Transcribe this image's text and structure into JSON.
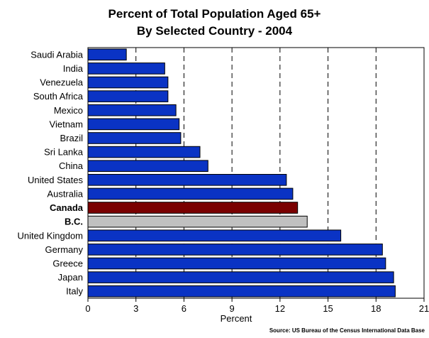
{
  "chart_data": {
    "type": "bar",
    "orientation": "horizontal",
    "title": "Percent of Total Population Aged 65+",
    "subtitle": "By Selected Country - 2004",
    "xlabel": "Percent",
    "ylabel": "",
    "xlim": [
      0,
      21
    ],
    "xticks": [
      "0",
      "3",
      "6",
      "9",
      "12",
      "15",
      "18",
      "21"
    ],
    "grid": "vertical dashed",
    "source": "Source:  US Bureau of the Census International Data Base",
    "categories": [
      "Saudi Arabia",
      "India",
      "Venezuela",
      "South Africa",
      "Mexico",
      "Vietnam",
      "Brazil",
      "Sri Lanka",
      "China",
      "United States",
      "Australia",
      "Canada",
      "B.C.",
      "United Kingdom",
      "Germany",
      "Greece",
      "Japan",
      "Italy"
    ],
    "values": [
      2.4,
      4.8,
      5.0,
      5.0,
      5.5,
      5.7,
      5.8,
      7.0,
      7.5,
      12.4,
      12.8,
      13.1,
      13.7,
      15.8,
      18.4,
      18.6,
      19.1,
      19.2
    ],
    "highlight": {
      "Canada": {
        "color": "#7a0000",
        "bold": true
      },
      "B.C.": {
        "color": "#c0c0c0",
        "bold": true
      }
    },
    "bar_color": "#0a33c4"
  }
}
